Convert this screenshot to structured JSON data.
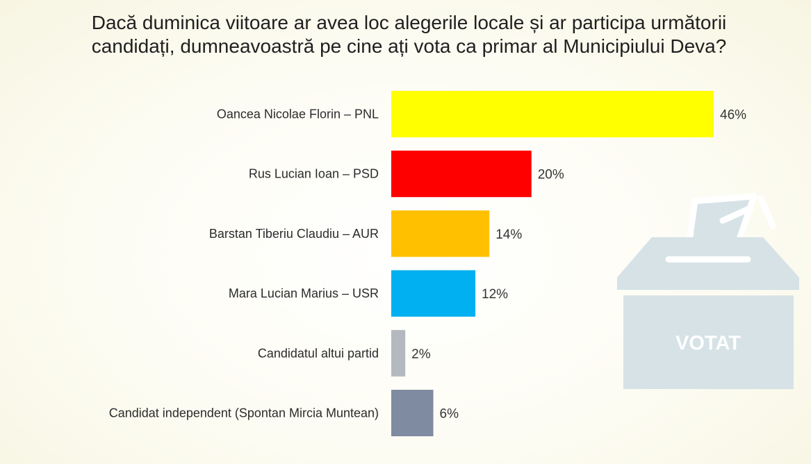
{
  "chart_data": {
    "type": "bar",
    "orientation": "horizontal",
    "title_lines": [
      "Dacă duminica viitoare ar avea loc alegerile locale și ar participa următorii",
      "candidați, dumneavoastră pe cine ați vota ca primar al Municipiului Deva?"
    ],
    "categories": [
      "Oancea Nicolae Florin – PNL",
      "Rus Lucian Ioan – PSD",
      "Barstan Tiberiu Claudiu – AUR",
      "Mara Lucian Marius – USR",
      "Candidatul altui partid",
      "Candidat independent (Spontan Mircia Muntean)"
    ],
    "values": [
      46,
      20,
      14,
      12,
      2,
      6
    ],
    "value_labels": [
      "46%",
      "20%",
      "14%",
      "12%",
      "2%",
      "6%"
    ],
    "colors": [
      "#ffff00",
      "#ff0000",
      "#ffc000",
      "#00b0f0",
      "#b4b9c0",
      "#7f8ba0"
    ],
    "unit": "%",
    "xlim": [
      0,
      46
    ],
    "grid": false,
    "legend": "none"
  },
  "illustration": {
    "icon": "ballot-box-icon",
    "label": "VOTAT",
    "color": "#d6e2e6"
  }
}
